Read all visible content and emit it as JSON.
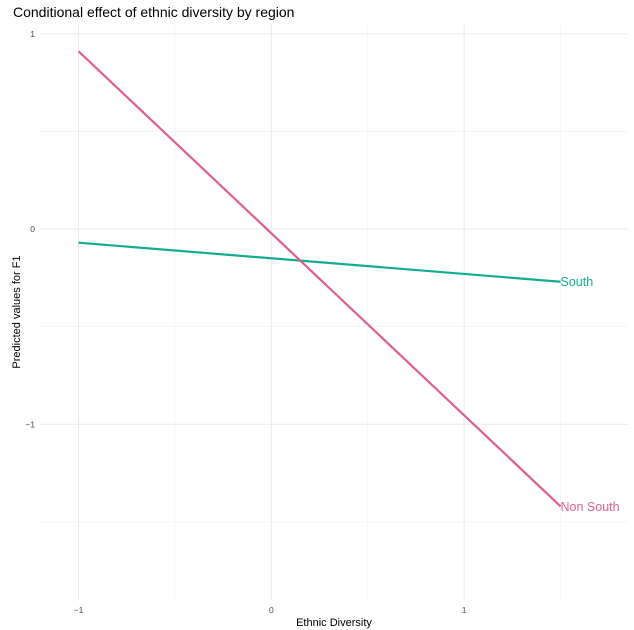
{
  "chart_data": {
    "type": "line",
    "title": "Conditional effect of ethnic diversity by region",
    "xlabel": "Ethnic Diversity",
    "ylabel": "Predicted values for F1",
    "xlim": [
      -1.2,
      1.85
    ],
    "ylim": [
      -1.9,
      1.05
    ],
    "xticks": [
      -1,
      0,
      1
    ],
    "xtick_labels": [
      "−1",
      "0",
      "1"
    ],
    "yticks": [
      -1,
      0,
      1
    ],
    "ytick_labels": [
      "−1",
      "0",
      "1"
    ],
    "grid": true,
    "legend": "none (series labelled at line ends)",
    "series": [
      {
        "name": "South",
        "color": "#14ac8e",
        "x": [
          -1,
          1.5
        ],
        "y": [
          -0.07,
          -0.27
        ]
      },
      {
        "name": "Non South",
        "color": "#e0608a",
        "x": [
          -1,
          1.5
        ],
        "y": [
          0.91,
          -1.42
        ]
      }
    ]
  }
}
